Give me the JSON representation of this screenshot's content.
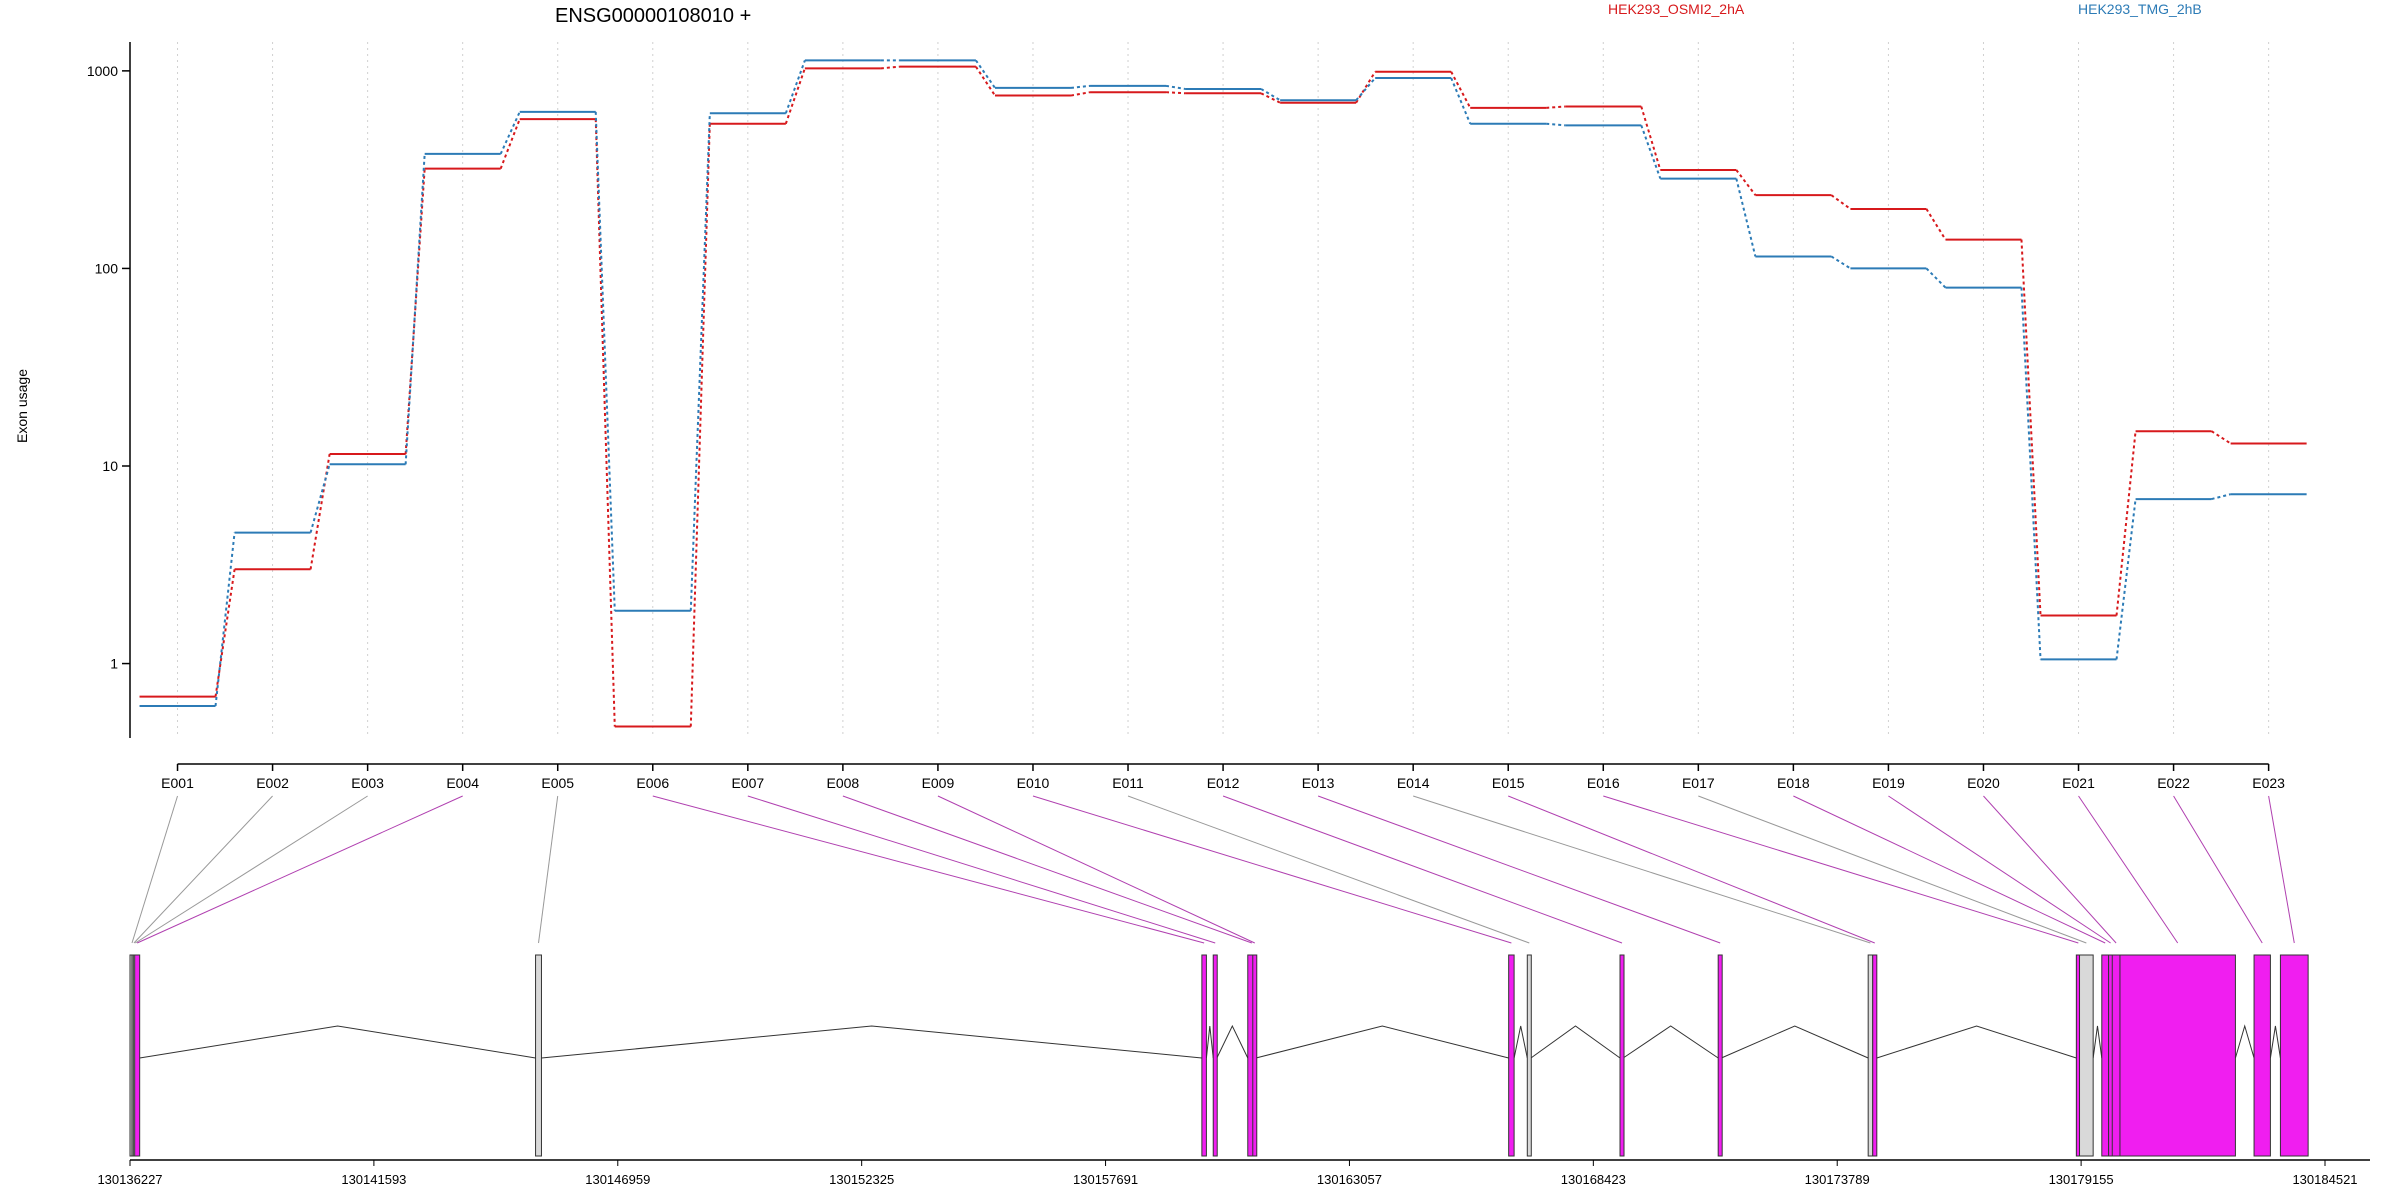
{
  "chart_data": {
    "type": "line",
    "title": "ENSG00000108010 +",
    "ylabel": "Exon usage",
    "yscale": "log",
    "ylim": [
      0.42,
      1400
    ],
    "yticks": [
      1,
      10,
      100,
      1000
    ],
    "ytick_labels": [
      "1",
      "10",
      "100",
      "1000"
    ],
    "grid": "vertical dotted lines at exon bins",
    "legend_position": "top",
    "categories": [
      "E001",
      "E002",
      "E003",
      "E004",
      "E005",
      "E006",
      "E007",
      "E008",
      "E009",
      "E010",
      "E011",
      "E012",
      "E013",
      "E014",
      "E015",
      "E016",
      "E017",
      "E018",
      "E019",
      "E020",
      "E021",
      "E022",
      "E023"
    ],
    "series": [
      {
        "name": "HEK293_OSMI2_2hA",
        "color": "#d7191c",
        "values": [
          0.68,
          3.0,
          11.5,
          320,
          570,
          0.48,
          540,
          1030,
          1050,
          750,
          780,
          770,
          690,
          990,
          650,
          660,
          315,
          235,
          200,
          140,
          1.75,
          15,
          13
        ]
      },
      {
        "name": "HEK293_TMG_2hB",
        "color": "#2c7bb6",
        "values": [
          0.61,
          4.6,
          10.2,
          380,
          620,
          1.85,
          610,
          1130,
          1130,
          820,
          840,
          810,
          710,
          920,
          540,
          530,
          285,
          115,
          100,
          80,
          1.05,
          6.8,
          7.2
        ]
      }
    ],
    "gene_track": {
      "coordinate_labels": [
        "130136227",
        "130141593",
        "130146959",
        "130152325",
        "130157691",
        "130163057",
        "130168423",
        "130173789",
        "130179155",
        "130184521"
      ],
      "coord_start": 130136227,
      "coord_end": 130184521,
      "exon_colors": {
        "significant": "#f01ef0",
        "not_significant": "#d9d9d9"
      },
      "exons": [
        {
          "id": "E001",
          "start": 130136227,
          "end": 130136270,
          "significant": false
        },
        {
          "id": "E002",
          "start": 130136270,
          "end": 130136300,
          "significant": false
        },
        {
          "id": "E003",
          "start": 130136300,
          "end": 130136330,
          "significant": false
        },
        {
          "id": "E004",
          "start": 130136330,
          "end": 130136440,
          "significant": true
        },
        {
          "id": "E005",
          "start": 130145150,
          "end": 130145280,
          "significant": false
        },
        {
          "id": "E006",
          "start": 130159810,
          "end": 130159910,
          "significant": true
        },
        {
          "id": "E007",
          "start": 130160060,
          "end": 130160140,
          "significant": true
        },
        {
          "id": "E008",
          "start": 130160820,
          "end": 130161000,
          "significant": true
        },
        {
          "id": "E009",
          "start": 130160930,
          "end": 130161000,
          "significant": true
        },
        {
          "id": "E010",
          "start": 130166560,
          "end": 130166680,
          "significant": true
        },
        {
          "id": "E011",
          "start": 130166970,
          "end": 130167050,
          "significant": false
        },
        {
          "id": "E012",
          "start": 130169010,
          "end": 130169080,
          "significant": true
        },
        {
          "id": "E013",
          "start": 130171170,
          "end": 130171240,
          "significant": true
        },
        {
          "id": "E014",
          "start": 130174470,
          "end": 130174570,
          "significant": false
        },
        {
          "id": "E015",
          "start": 130174570,
          "end": 130174660,
          "significant": true
        },
        {
          "id": "E016",
          "start": 130179050,
          "end": 130179120,
          "significant": true
        },
        {
          "id": "E017",
          "start": 130179120,
          "end": 130179420,
          "significant": false
        },
        {
          "id": "E018",
          "start": 130179610,
          "end": 130179760,
          "significant": true
        },
        {
          "id": "E019",
          "start": 130179760,
          "end": 130179840,
          "significant": true
        },
        {
          "id": "E020",
          "start": 130179840,
          "end": 130180010,
          "significant": true
        },
        {
          "id": "E021",
          "start": 130180010,
          "end": 130182550,
          "significant": true
        },
        {
          "id": "E022",
          "start": 130182960,
          "end": 130183320,
          "significant": true
        },
        {
          "id": "E023",
          "start": 130183540,
          "end": 130184150,
          "significant": true
        }
      ]
    }
  }
}
